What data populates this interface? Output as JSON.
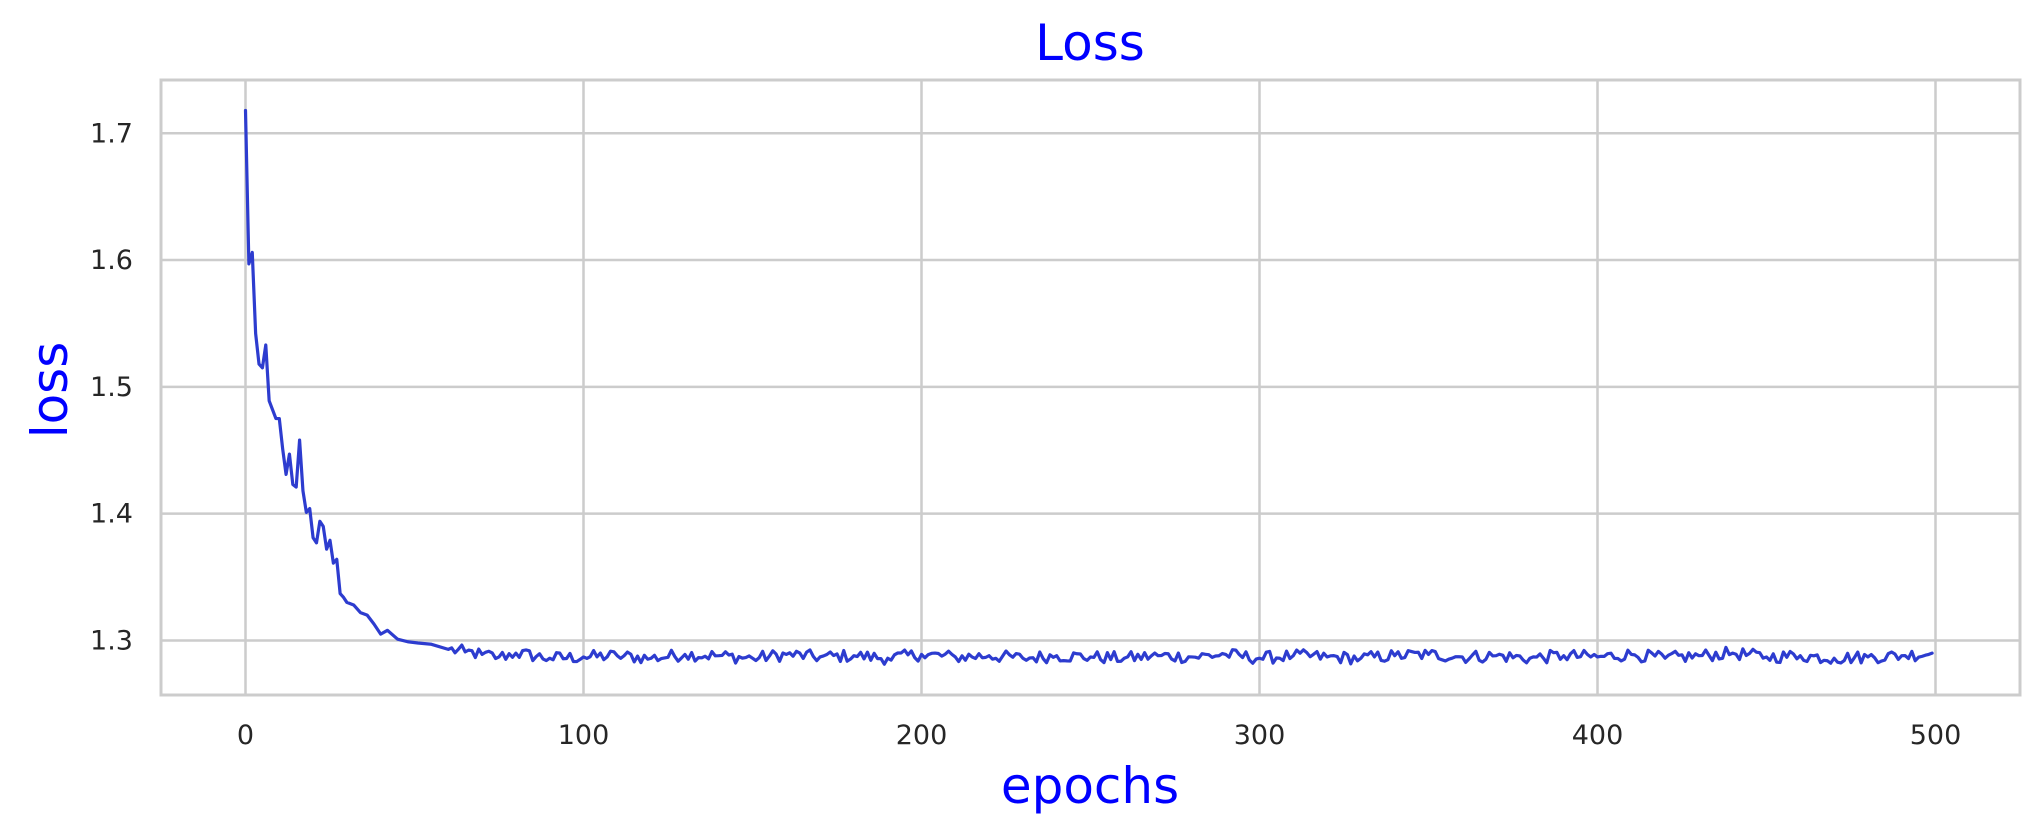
{
  "chart_data": {
    "type": "line",
    "title": "Loss",
    "xlabel": "epochs",
    "ylabel": "loss",
    "xlim": [
      -25,
      525
    ],
    "ylim": [
      1.257,
      1.742
    ],
    "xticks": [
      0,
      100,
      200,
      300,
      400,
      500
    ],
    "xtick_labels": [
      "0",
      "100",
      "200",
      "300",
      "400",
      "500"
    ],
    "yticks": [
      1.3,
      1.4,
      1.5,
      1.6,
      1.7
    ],
    "ytick_labels": [
      "1.3",
      "1.4",
      "1.5",
      "1.6",
      "1.7"
    ],
    "grid": true,
    "legend": "none",
    "colors": {
      "label_text": "#0000ff",
      "series": "#2d3ccf",
      "grid": "#cccccc",
      "tick_text": "#262626"
    },
    "series": [
      {
        "x": [
          0,
          1,
          2,
          3,
          4,
          5,
          6,
          7,
          8,
          9,
          10,
          11,
          12,
          13,
          14,
          15,
          16,
          17,
          18,
          19,
          20,
          21,
          22,
          23,
          24,
          25,
          26,
          27,
          28,
          29,
          30,
          32,
          34,
          36,
          38,
          40,
          42,
          45,
          48,
          51,
          55,
          60,
          65,
          70,
          75,
          80,
          90,
          100,
          110,
          120,
          130,
          140,
          150,
          160,
          170,
          180,
          190,
          200,
          210,
          220,
          230,
          240,
          250,
          260,
          270,
          280,
          290,
          300,
          310,
          320,
          330,
          340,
          350,
          360,
          370,
          380,
          390,
          400,
          410,
          420,
          430,
          440,
          450,
          460,
          470,
          480,
          490,
          499
        ],
        "values": [
          1.718,
          1.597,
          1.606,
          1.542,
          1.518,
          1.515,
          1.533,
          1.489,
          1.482,
          1.475,
          1.475,
          1.451,
          1.431,
          1.447,
          1.423,
          1.421,
          1.458,
          1.418,
          1.401,
          1.404,
          1.381,
          1.377,
          1.394,
          1.39,
          1.372,
          1.379,
          1.361,
          1.364,
          1.337,
          1.334,
          1.33,
          1.328,
          1.322,
          1.32,
          1.313,
          1.305,
          1.308,
          1.301,
          1.299,
          1.298,
          1.297,
          1.293,
          1.291,
          1.289,
          1.287,
          1.29,
          1.286,
          1.287,
          1.288,
          1.286,
          1.289,
          1.288,
          1.286,
          1.289,
          1.287,
          1.288,
          1.286,
          1.289,
          1.287,
          1.288,
          1.286,
          1.288,
          1.287,
          1.286,
          1.288,
          1.287,
          1.289,
          1.286,
          1.288,
          1.287,
          1.286,
          1.288,
          1.289,
          1.287,
          1.288,
          1.286,
          1.288,
          1.287,
          1.289,
          1.286,
          1.288,
          1.29,
          1.287,
          1.288,
          1.286,
          1.287,
          1.288,
          1.29
        ]
      }
    ]
  }
}
